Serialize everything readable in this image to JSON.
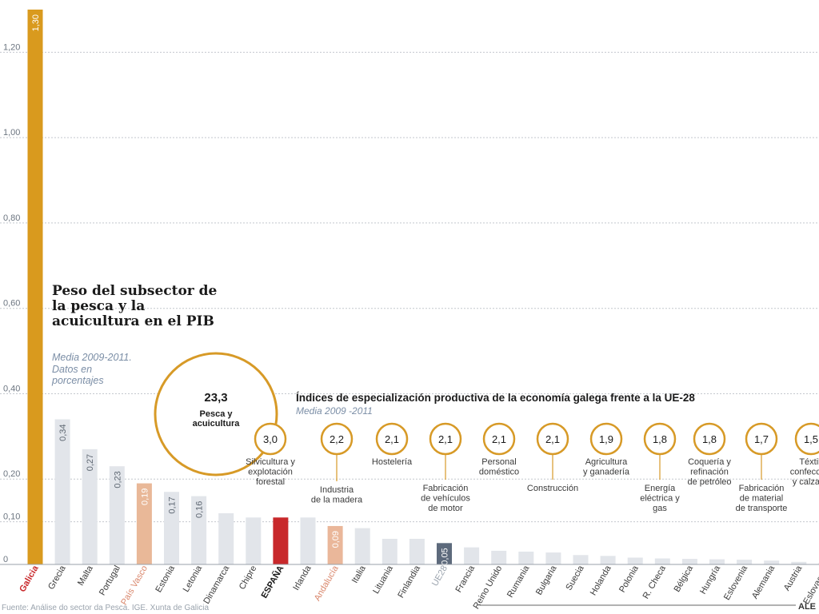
{
  "title": "Peso del subsector de la pesca y la acuicultura en el PIB",
  "subtitle": "Media 2009-2011. Datos en porcentajes",
  "source": "Fuente: Análise do sector da Pesca. IGE. Xunta de Galicia",
  "credit": "ALE",
  "colors": {
    "galicia": "#d99a1e",
    "default_bar": "#e2e5ea",
    "spain": "#c8282b",
    "pais_vasco": "#e9b898",
    "andalucia": "#eab79a",
    "eu": "#5d6a7c",
    "circle": "#d79a27"
  },
  "chart_data": [
    {
      "type": "bar",
      "title": "Peso del subsector de la pesca y la acuicultura en el PIB",
      "subtitle": "Media 2009-2011. Datos en porcentajes",
      "ylim": [
        0,
        1.3
      ],
      "yticks": [
        {
          "v": 0,
          "label": "0"
        },
        {
          "v": 0.1,
          "label": "0,10"
        },
        {
          "v": 0.2,
          "label": "0,20"
        },
        {
          "v": 0.4,
          "label": "0,40"
        },
        {
          "v": 0.6,
          "label": "0,60"
        },
        {
          "v": 0.8,
          "label": "0,80"
        },
        {
          "v": 1.0,
          "label": "1,00"
        },
        {
          "v": 1.2,
          "label": "1,20"
        }
      ],
      "grid": true,
      "categories": [
        "Galicia",
        "Grecia",
        "Malta",
        "Portugal",
        "País Vasco",
        "Estonia",
        "Letonia",
        "Dinamarca",
        "Chipre",
        "ESPAÑA",
        "Irlanda",
        "Andalucía",
        "Italia",
        "Lituania",
        "Finlandia",
        "UE28",
        "Francia",
        "Reino Unido",
        "Rumania",
        "Bulgaria",
        "Suecia",
        "Holanda",
        "Polonia",
        "R. Checa",
        "Bélgica",
        "Hungría",
        "Eslovenia",
        "Alemania",
        "Austria",
        "Eslovaquia"
      ],
      "values": [
        1.3,
        0.34,
        0.27,
        0.23,
        0.19,
        0.17,
        0.16,
        0.12,
        0.11,
        0.11,
        0.11,
        0.09,
        0.085,
        0.06,
        0.06,
        0.05,
        0.04,
        0.032,
        0.03,
        0.028,
        0.022,
        0.02,
        0.016,
        0.014,
        0.013,
        0.012,
        0.011,
        0.009,
        0.006,
        0.004
      ],
      "value_labels": [
        "1,30",
        "0,34",
        "0,27",
        "0,23",
        "0,19",
        "0,17",
        "0,16",
        "",
        "",
        "",
        "",
        "0,09",
        "",
        "",
        "",
        "0,05",
        "",
        "",
        "",
        "",
        "",
        "",
        "",
        "",
        "",
        "",
        "",
        "",
        "",
        ""
      ],
      "highlight": {
        "0": "galicia",
        "4": "pais_vasco",
        "9": "spain",
        "11": "andalucia",
        "15": "eu"
      }
    },
    {
      "type": "table",
      "title": "Índices de especialización productiva de la economía galega frente a la UE-28",
      "subtitle": "Media 2009 -2011",
      "items": [
        {
          "value": "23,3",
          "label": "Pesca y acuicultura"
        },
        {
          "value": "3,0",
          "label": "Silvicultura y explotación forestal"
        },
        {
          "value": "2,2",
          "label": "Industria de la madera"
        },
        {
          "value": "2,1",
          "label": "Hostelería"
        },
        {
          "value": "2,1",
          "label": "Fabricación de vehículos de motor"
        },
        {
          "value": "2,1",
          "label": "Personal doméstico"
        },
        {
          "value": "2,1",
          "label": "Construcción"
        },
        {
          "value": "1,9",
          "label": "Agricultura y ganadería"
        },
        {
          "value": "1,8",
          "label": "Energía eléctrica y gas"
        },
        {
          "value": "1,8",
          "label": "Coquería y refinación de petróleo"
        },
        {
          "value": "1,7",
          "label": "Fabricación de material de transporte"
        },
        {
          "value": "1,5",
          "label": "Téxtil, confección y calzado"
        }
      ]
    }
  ]
}
